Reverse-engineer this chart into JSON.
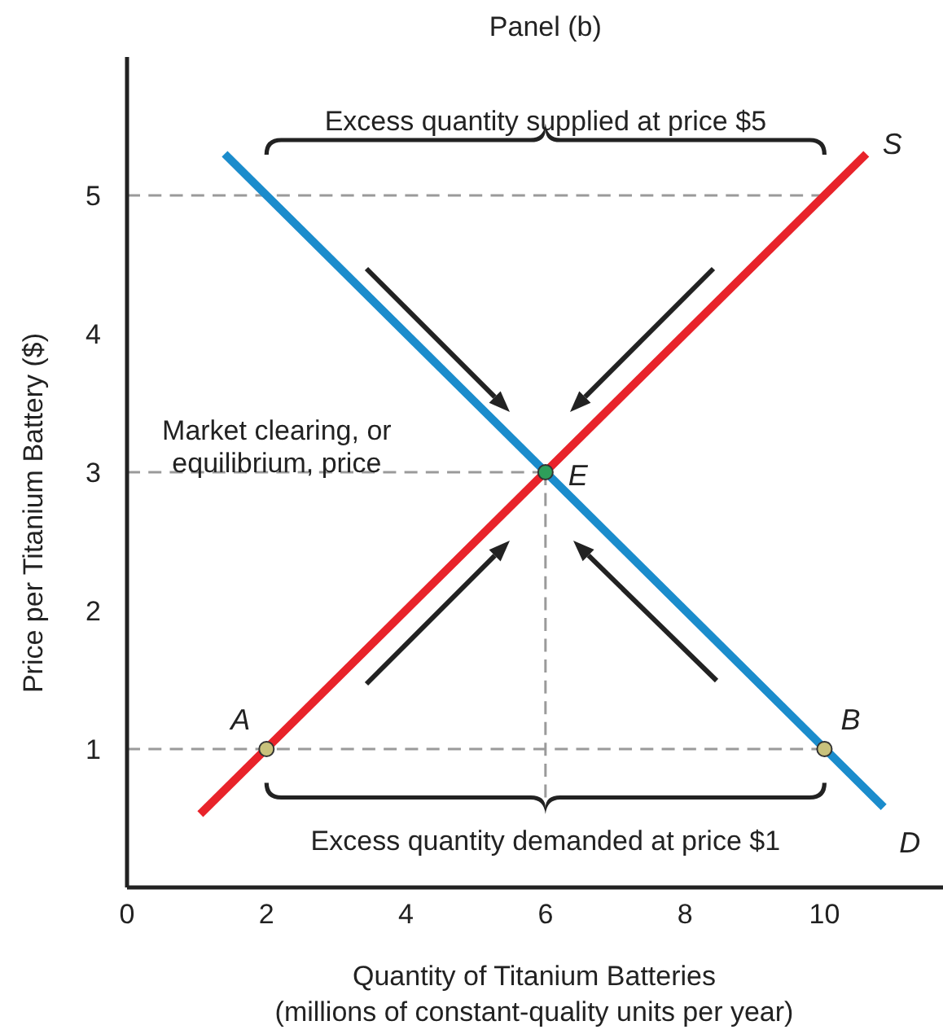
{
  "chart_data": {
    "type": "line",
    "title": "Panel (b)",
    "xlabel": "Quantity of Titanium Batteries\n(millions of constant-quality units per year)",
    "ylabel": "Price per Titanium Battery ($)",
    "xlim": [
      0,
      11.7
    ],
    "ylim": [
      0,
      6
    ],
    "xticks": [
      0,
      2,
      4,
      6,
      8,
      10
    ],
    "yticks": [
      1,
      2,
      3,
      4,
      5
    ],
    "grid": false,
    "legend": false,
    "series": [
      {
        "type": "line",
        "color": "#9a9a9a",
        "line_style": "dashed",
        "x": [
          0,
          10
        ],
        "values": [
          5,
          5
        ]
      },
      {
        "type": "line",
        "color": "#9a9a9a",
        "line_style": "dashed",
        "x": [
          0,
          10
        ],
        "values": [
          1,
          1
        ]
      },
      {
        "type": "line",
        "color": "#9a9a9a",
        "line_style": "dashed",
        "x": [
          0,
          6
        ],
        "values": [
          3,
          3
        ]
      },
      {
        "type": "line",
        "color": "#9a9a9a",
        "line_style": "dashed",
        "x": [
          6,
          6
        ],
        "values": [
          0.65,
          3
        ]
      },
      {
        "type": "line",
        "name": "S",
        "color": "#e8232a",
        "x": [
          1.05,
          10.6
        ],
        "values": [
          0.53,
          5.3
        ]
      },
      {
        "type": "line",
        "name": "D",
        "color": "#1b8ccc",
        "x": [
          1.4,
          10.85
        ],
        "values": [
          5.3,
          0.58
        ]
      },
      {
        "type": "scatter",
        "marker": "circle",
        "x": [
          2,
          10,
          6
        ],
        "values": [
          1,
          1,
          3
        ],
        "colors": [
          "#c9c27c",
          "#c9c27c",
          "#2e9e5a"
        ]
      }
    ],
    "annotations": [
      "Excess quantity supplied at price $5",
      "Market clearing, or\nequilibrium, price",
      {
        "text": "A",
        "x": 2,
        "y": 1
      },
      {
        "text": "B",
        "x": 10,
        "y": 1
      },
      {
        "text": "E",
        "x": 6,
        "y": 3
      },
      "Excess quantity demanded at price $1"
    ]
  }
}
